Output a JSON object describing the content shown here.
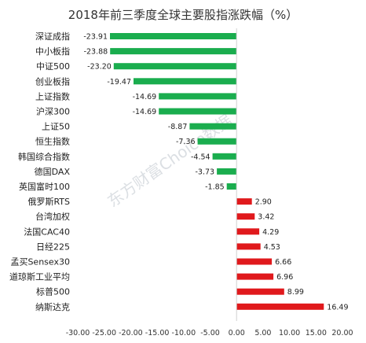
{
  "chart_data": {
    "type": "bar",
    "orientation": "horizontal",
    "title": "2018年前三季度全球主要股指涨跌幅（%）",
    "categories": [
      "深证成指",
      "中小板指",
      "中证500",
      "创业板指",
      "上证指数",
      "沪深300",
      "上证50",
      "恒生指数",
      "韩国综合指数",
      "德国DAX",
      "英国富时100",
      "俄罗斯RTS",
      "台湾加权",
      "法国CAC40",
      "日经225",
      "孟买Sensex30",
      "道琼斯工业平均",
      "标普500",
      "纳斯达克"
    ],
    "values": [
      -23.91,
      -23.88,
      -23.2,
      -19.47,
      -14.69,
      -14.69,
      -8.87,
      -7.36,
      -4.54,
      -3.73,
      -1.85,
      2.9,
      3.42,
      4.29,
      4.53,
      6.66,
      6.96,
      8.99,
      16.49
    ],
    "value_labels": [
      "-23.91",
      "-23.88",
      "-23.20",
      "-19.47",
      "-14.69",
      "-14.69",
      "-8.87",
      "-7.36",
      "-4.54",
      "-3.73",
      "-1.85",
      "2.90",
      "3.42",
      "4.29",
      "4.53",
      "6.66",
      "6.96",
      "8.99",
      "16.49"
    ],
    "xlim": [
      -30,
      20
    ],
    "x_ticks": [
      "-30.00",
      "-25.00",
      "-20.00",
      "-15.00",
      "-10.00",
      "-5.00",
      "0.00",
      "5.00",
      "10.00",
      "15.00",
      "20.00"
    ],
    "x_tick_values": [
      -30,
      -25,
      -20,
      -15,
      -10,
      -5,
      0,
      5,
      10,
      15,
      20
    ],
    "colors": {
      "negative": "#1aad4e",
      "positive": "#e0191c"
    },
    "grid": false,
    "legend": "none"
  },
  "watermark": "东方财富Choice数据"
}
